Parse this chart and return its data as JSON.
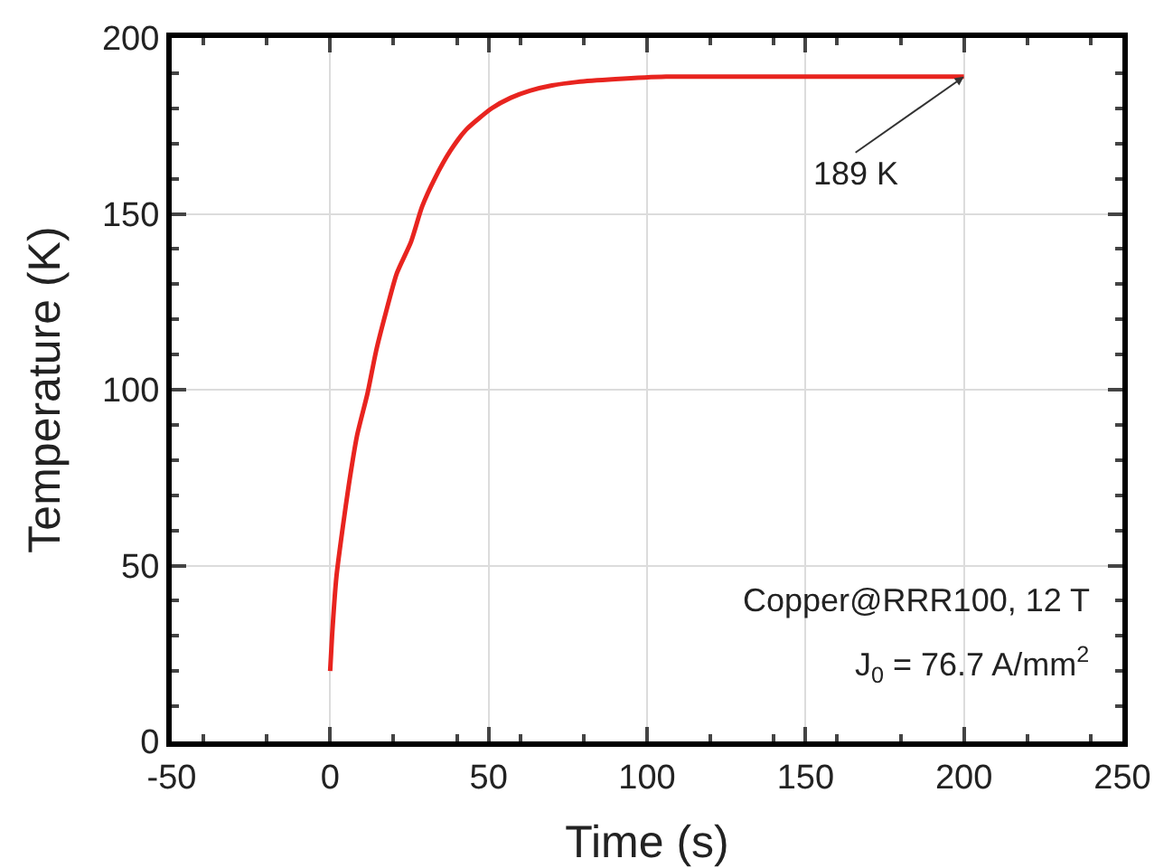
{
  "chart_data": {
    "type": "line",
    "xlabel": "Time (s)",
    "ylabel": "Temperature (K)",
    "x": [
      0,
      0.6,
      2,
      4,
      5.9,
      8.5,
      11.8,
      14.5,
      17.6,
      21,
      25.5,
      29,
      33,
      38,
      43,
      51,
      57,
      63,
      70,
      78,
      90,
      106,
      130,
      160,
      200
    ],
    "series": [
      {
        "color": "#e8241f",
        "values": [
          20,
          30,
          47,
          61,
          73,
          87,
          99,
          111,
          122,
          133,
          142,
          152,
          160,
          168,
          174,
          180,
          183,
          185,
          186.5,
          187.5,
          188.3,
          189,
          189,
          189,
          189
        ]
      }
    ],
    "xlim": [
      -50,
      250
    ],
    "xticks": [
      -50,
      0,
      50,
      100,
      150,
      200,
      250
    ],
    "ylim": [
      0,
      200
    ],
    "yticks": [
      0,
      50,
      100,
      150,
      200
    ],
    "grid": true,
    "marker": "none",
    "line_style": "solid",
    "annotations": [
      {
        "text": "189 K",
        "x": 200,
        "y": 189
      },
      "Copper@RRR100, 12 T",
      "J$_{0}$ = 76.7 A/mm$^{2}$"
    ]
  }
}
